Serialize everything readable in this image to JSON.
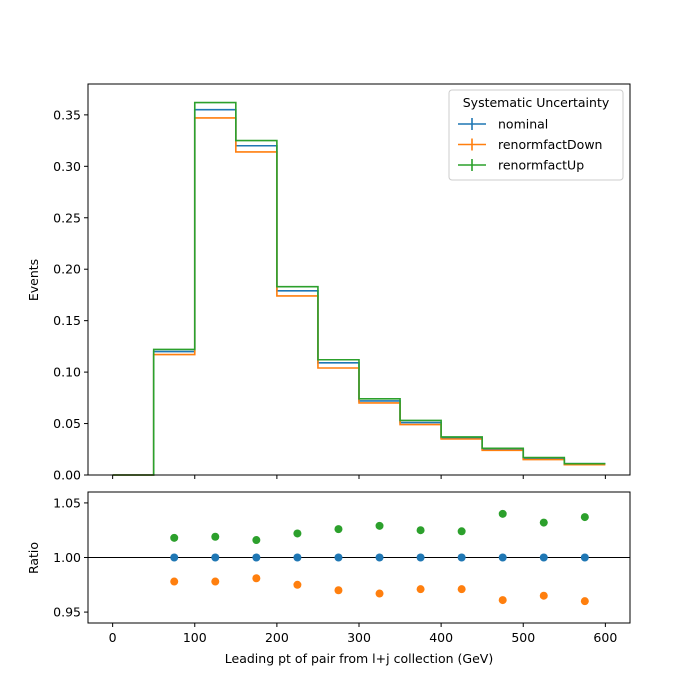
{
  "chart_data": [
    {
      "type": "step",
      "xlabel": "",
      "ylabel": "Events",
      "xlim": [
        -30,
        630
      ],
      "ylim": [
        0,
        0.38
      ],
      "yticks": [
        "0.00",
        "0.05",
        "0.10",
        "0.15",
        "0.20",
        "0.25",
        "0.30",
        "0.35"
      ],
      "bin_edges": [
        0,
        50,
        100,
        150,
        200,
        250,
        300,
        350,
        400,
        450,
        500,
        550,
        600
      ],
      "legend": {
        "title": "Systematic Uncertainty",
        "placement": "top-right"
      },
      "series": [
        {
          "name": "nominal",
          "color": "#1f77b4",
          "values": [
            0.0,
            0.12,
            0.355,
            0.32,
            0.179,
            0.109,
            0.072,
            0.051,
            0.036,
            0.025,
            0.016,
            0.011
          ]
        },
        {
          "name": "renormfactDown",
          "color": "#ff7f0e",
          "values": [
            0.0,
            0.117,
            0.347,
            0.314,
            0.174,
            0.104,
            0.07,
            0.049,
            0.035,
            0.024,
            0.015,
            0.01
          ]
        },
        {
          "name": "renormfactUp",
          "color": "#2ca02c",
          "values": [
            0.0,
            0.122,
            0.362,
            0.325,
            0.183,
            0.112,
            0.074,
            0.053,
            0.037,
            0.026,
            0.017,
            0.011
          ]
        }
      ]
    },
    {
      "type": "scatter",
      "xlabel": "Leading pt of pair from l+j collection (GeV)",
      "ylabel": "Ratio",
      "xlim": [
        -30,
        630
      ],
      "ylim": [
        0.94,
        1.06
      ],
      "xticks": [
        "0",
        "100",
        "200",
        "300",
        "400",
        "500",
        "600"
      ],
      "yticks": [
        "0.95",
        "1.00",
        "1.05"
      ],
      "reference_line": 1.0,
      "x": [
        75,
        125,
        175,
        225,
        275,
        325,
        375,
        425,
        475,
        525,
        575
      ],
      "series": [
        {
          "name": "nominal",
          "color": "#1f77b4",
          "values": [
            1.0,
            1.0,
            1.0,
            1.0,
            1.0,
            1.0,
            1.0,
            1.0,
            1.0,
            1.0,
            1.0
          ]
        },
        {
          "name": "renormfactDown",
          "color": "#ff7f0e",
          "values": [
            0.978,
            0.978,
            0.981,
            0.975,
            0.97,
            0.967,
            0.971,
            0.971,
            0.961,
            0.965,
            0.96
          ]
        },
        {
          "name": "renormfactUp",
          "color": "#2ca02c",
          "values": [
            1.018,
            1.019,
            1.016,
            1.022,
            1.026,
            1.029,
            1.025,
            1.024,
            1.04,
            1.032,
            1.037
          ]
        }
      ]
    }
  ]
}
